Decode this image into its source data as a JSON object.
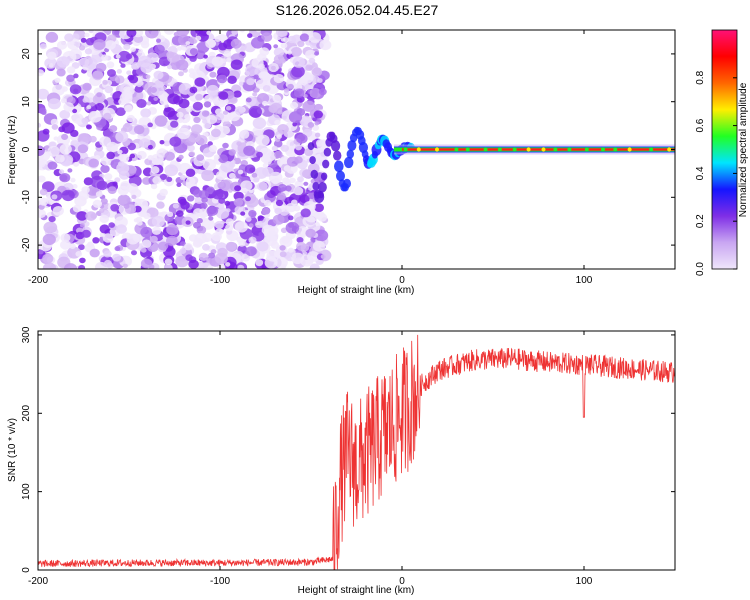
{
  "title": "S126.2026.052.04.45.E27",
  "chart_data": [
    {
      "type": "heatmap",
      "xlabel": "Height of straight line (km)",
      "ylabel": "Frequency (Hz)",
      "xlim": [
        -200,
        150
      ],
      "ylim": [
        -25,
        25
      ],
      "xticks": [
        -200,
        -100,
        0,
        100
      ],
      "yticks": [
        -20,
        -10,
        0,
        10,
        20
      ],
      "colorbar": {
        "label": "Normalized spectral amplitude",
        "range": [
          0,
          1
        ],
        "ticks": [
          0.0,
          0.2,
          0.4,
          0.6,
          0.8
        ],
        "tick_labels": [
          "0.0",
          "0.2",
          "0.4",
          "0.6",
          "0.8"
        ],
        "colors": [
          "#efe6fb",
          "#c9a6f2",
          "#7f2ee6",
          "#1515ff",
          "#00e5ff",
          "#22ff22",
          "#ffee00",
          "#ff6600",
          "#ff0000",
          "#ff1177"
        ]
      },
      "description_regions": [
        {
          "x_range": [
            -200,
            -50
          ],
          "freq_range": [
            -25,
            25
          ],
          "amplitude": "low (0.0-0.2), scattered noise"
        },
        {
          "x_range": [
            -50,
            0
          ],
          "freq_range": [
            -10,
            5
          ],
          "amplitude": "transition, oscillating signal 0.2-0.6"
        },
        {
          "x_range": [
            0,
            150
          ],
          "freq_range": [
            -0.5,
            0.5
          ],
          "amplitude": "high (0.8-1.0), steady carrier near 0 Hz"
        }
      ]
    },
    {
      "type": "line",
      "xlabel": "Height of straight line (km)",
      "ylabel": "SNR (10 * v/v)",
      "xlim": [
        -200,
        150
      ],
      "ylim": [
        0,
        305
      ],
      "xticks": [
        -200,
        -100,
        0,
        100
      ],
      "yticks": [
        0,
        100,
        200,
        300
      ],
      "series_color": "#ee3333",
      "trend": [
        {
          "x": -200,
          "y": 8
        },
        {
          "x": -150,
          "y": 9
        },
        {
          "x": -100,
          "y": 9
        },
        {
          "x": -50,
          "y": 10
        },
        {
          "x": -38,
          "y": 14
        },
        {
          "x": -34,
          "y": 110
        },
        {
          "x": -30,
          "y": 150
        },
        {
          "x": -25,
          "y": 130
        },
        {
          "x": -20,
          "y": 145
        },
        {
          "x": -15,
          "y": 160
        },
        {
          "x": -10,
          "y": 175
        },
        {
          "x": -5,
          "y": 185
        },
        {
          "x": 0,
          "y": 200
        },
        {
          "x": 5,
          "y": 215
        },
        {
          "x": 10,
          "y": 235
        },
        {
          "x": 15,
          "y": 245
        },
        {
          "x": 20,
          "y": 255
        },
        {
          "x": 30,
          "y": 262
        },
        {
          "x": 40,
          "y": 268
        },
        {
          "x": 60,
          "y": 270
        },
        {
          "x": 80,
          "y": 265
        },
        {
          "x": 100,
          "y": 262
        },
        {
          "x": 120,
          "y": 258
        },
        {
          "x": 150,
          "y": 252
        }
      ]
    }
  ]
}
